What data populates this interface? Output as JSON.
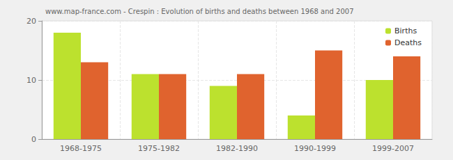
{
  "chart_data": {
    "type": "bar",
    "title": "www.map-france.com - Crespin : Evolution of births and deaths between 1968 and 2007",
    "categories": [
      "1968-1975",
      "1975-1982",
      "1982-1990",
      "1990-1999",
      "1999-2007"
    ],
    "series": [
      {
        "name": "Births",
        "color": "#bce12e",
        "values": [
          18,
          11,
          9,
          4,
          10
        ]
      },
      {
        "name": "Deaths",
        "color": "#e0632e",
        "values": [
          13,
          11,
          11,
          15,
          14
        ]
      }
    ],
    "ylim": [
      0,
      20
    ],
    "yticks": [
      0,
      10,
      20
    ],
    "grid": true,
    "legend": "top-right"
  }
}
